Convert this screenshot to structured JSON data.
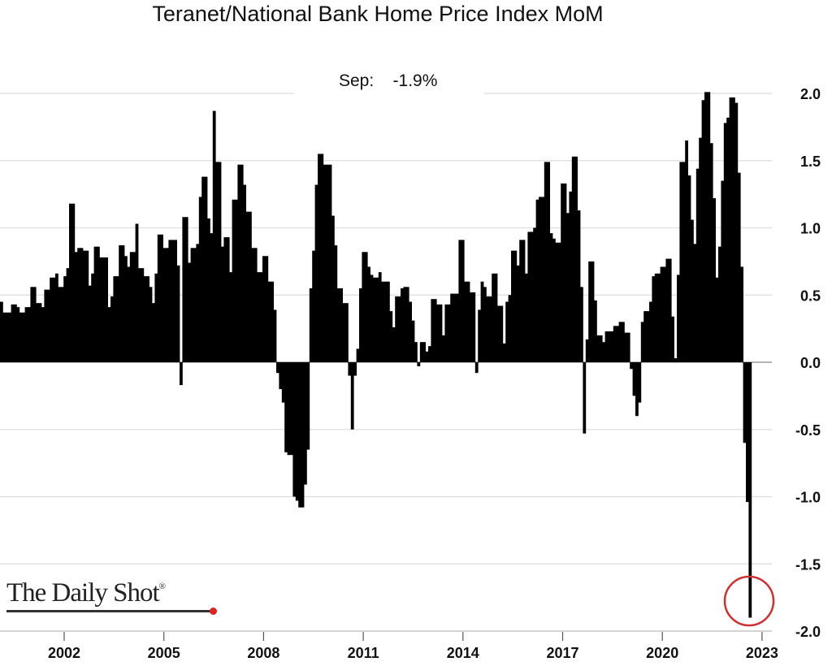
{
  "chart_data": {
    "type": "bar",
    "title": "Teranet/National Bank Home Price Index MoM",
    "annotation": {
      "label": "Sep:",
      "value": "-1.9%"
    },
    "xlabel": "",
    "ylabel": "",
    "start": "2000-01",
    "frequency": "monthly",
    "ylim": [
      -2.0,
      2.0
    ],
    "grid": true,
    "y_axis_side": "right",
    "y_ticks": [
      "2.0",
      "1.5",
      "1.0",
      "0.5",
      "0.0",
      "-0.5",
      "-1.0",
      "-1.5",
      "-2.0"
    ],
    "y_tick_values": [
      2.0,
      1.5,
      1.0,
      0.5,
      0.0,
      -0.5,
      -1.0,
      -1.5,
      -2.0
    ],
    "x_ticks": [
      "2002",
      "2005",
      "2008",
      "2011",
      "2014",
      "2017",
      "2020",
      "2023"
    ],
    "highlight": {
      "description": "latest value circled",
      "color": "#d03030"
    },
    "bar_color": "#000000",
    "values": [
      0.45,
      0.37,
      0.37,
      0.37,
      0.43,
      0.43,
      0.41,
      0.37,
      0.37,
      0.41,
      0.41,
      0.56,
      0.56,
      0.44,
      0.44,
      0.41,
      0.54,
      0.54,
      0.63,
      0.63,
      0.66,
      0.56,
      0.56,
      0.64,
      0.7,
      1.18,
      1.18,
      0.82,
      0.85,
      0.85,
      0.83,
      0.83,
      0.57,
      0.66,
      0.86,
      0.86,
      0.78,
      0.78,
      0.78,
      0.41,
      0.49,
      0.64,
      0.64,
      0.87,
      0.87,
      0.79,
      0.71,
      0.82,
      0.82,
      1.03,
      0.7,
      0.7,
      0.64,
      0.64,
      0.56,
      0.44,
      0.66,
      0.95,
      0.95,
      0.85,
      0.85,
      0.91,
      0.91,
      0.91,
      0.72,
      -0.17,
      1.08,
      1.08,
      0.74,
      0.85,
      0.85,
      0.88,
      1.23,
      1.38,
      1.38,
      1.07,
      0.96,
      1.87,
      1.49,
      1.49,
      0.86,
      0.93,
      0.93,
      0.67,
      1.21,
      1.21,
      1.47,
      1.47,
      1.32,
      1.12,
      1.12,
      0.85,
      0.85,
      0.67,
      0.67,
      0.79,
      0.79,
      0.6,
      0.6,
      0.39,
      -0.08,
      -0.2,
      -0.3,
      -0.67,
      -0.69,
      -0.69,
      -1.0,
      -1.03,
      -1.08,
      -1.08,
      -0.91,
      -0.65,
      0.55,
      0.83,
      1.32,
      1.55,
      1.55,
      1.47,
      1.47,
      1.47,
      1.09,
      0.87,
      0.55,
      0.55,
      0.44,
      0.44,
      -0.1,
      -0.5,
      -0.1,
      0.1,
      0.55,
      0.82,
      0.82,
      0.71,
      0.65,
      0.63,
      0.63,
      0.67,
      0.6,
      0.6,
      0.6,
      0.38,
      0.26,
      0.49,
      0.49,
      0.55,
      0.56,
      0.56,
      0.45,
      0.31,
      0.15,
      -0.03,
      0.15,
      0.15,
      0.08,
      0.12,
      0.47,
      0.47,
      0.43,
      0.43,
      0.2,
      0.43,
      0.43,
      0.51,
      0.51,
      0.51,
      0.91,
      0.91,
      0.6,
      0.6,
      0.52,
      0.52,
      -0.08,
      0.39,
      0.6,
      0.56,
      0.49,
      0.49,
      0.66,
      0.66,
      0.42,
      0.42,
      0.14,
      0.45,
      0.5,
      0.83,
      0.83,
      0.72,
      0.91,
      0.91,
      0.66,
      0.97,
      0.97,
      1.0,
      1.21,
      1.23,
      1.23,
      1.49,
      1.49,
      0.96,
      0.92,
      0.89,
      0.89,
      1.33,
      1.33,
      1.11,
      1.27,
      1.53,
      1.53,
      1.13,
      0.56,
      -0.53,
      0.17,
      0.75,
      0.75,
      0.46,
      0.2,
      0.2,
      0.15,
      0.23,
      0.23,
      0.23,
      0.27,
      0.27,
      0.3,
      0.3,
      0.22,
      0.22,
      -0.05,
      -0.25,
      -0.4,
      -0.3,
      0.3,
      0.38,
      0.38,
      0.45,
      0.64,
      0.66,
      0.66,
      0.71,
      0.71,
      0.77,
      0.77,
      0.34,
      0.03,
      0.65,
      1.49,
      1.49,
      1.65,
      1.39,
      1.06,
      0.88,
      1.44,
      1.67,
      1.95,
      2.01,
      2.01,
      1.63,
      1.22,
      0.63,
      0.86,
      1.35,
      1.78,
      1.82,
      1.97,
      1.97,
      1.93,
      1.41,
      0.71,
      -0.6,
      -1.04,
      -1.9
    ]
  },
  "logo": {
    "text": "The Daily Shot",
    "mark": "®"
  }
}
